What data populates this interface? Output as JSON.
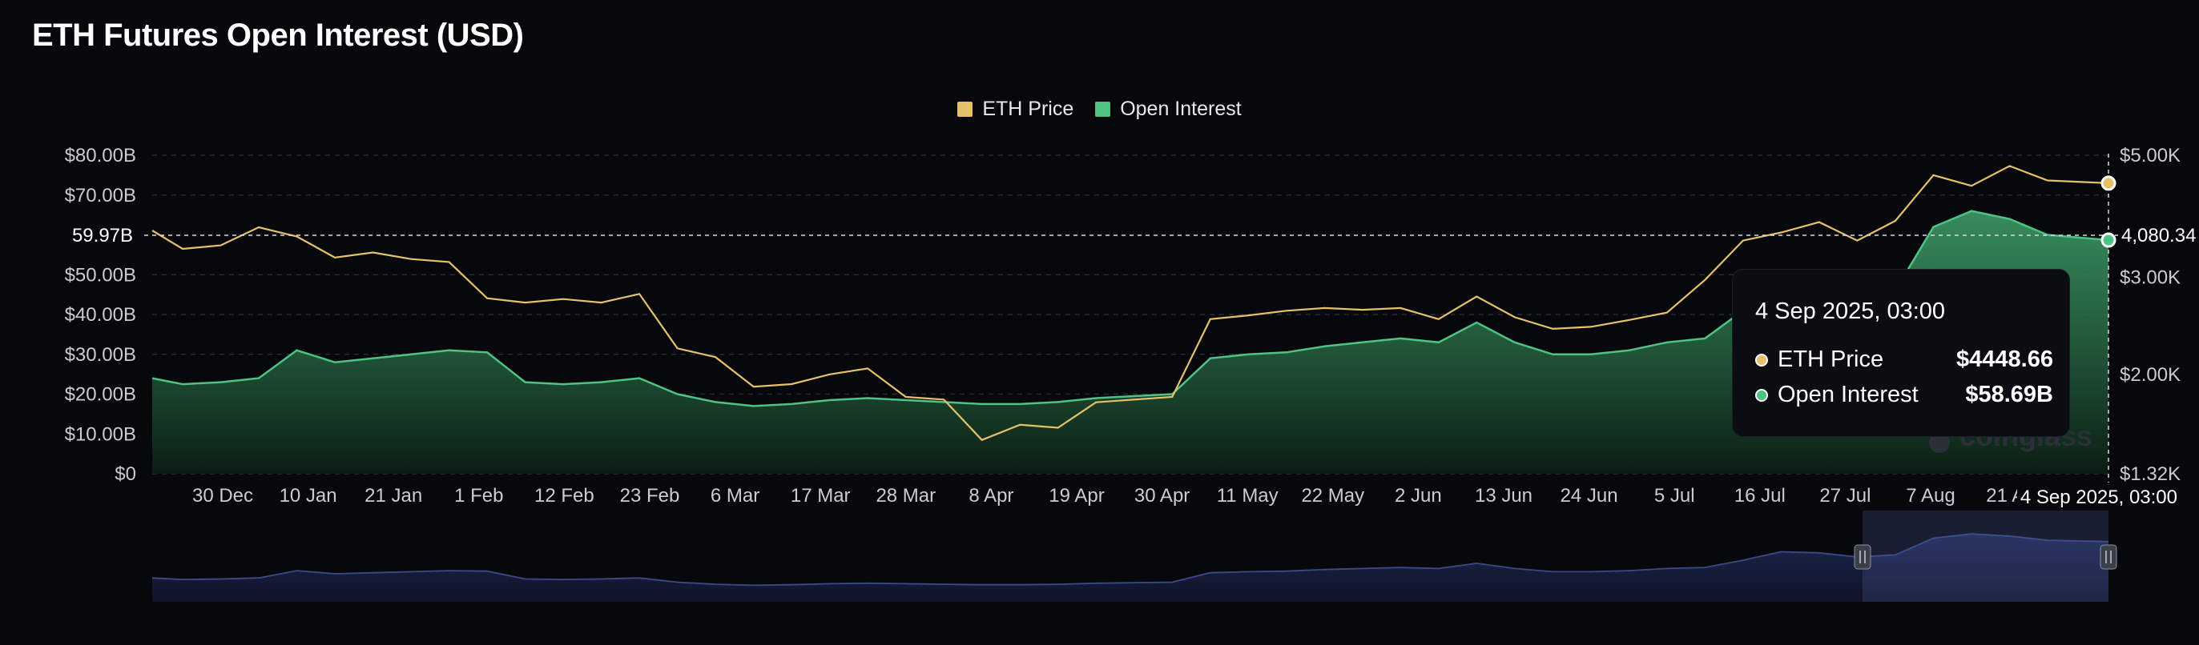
{
  "title": "ETH Futures Open Interest (USD)",
  "legend": {
    "price_label": "ETH Price",
    "oi_label": "Open Interest"
  },
  "colors": {
    "price": "#e6c16a",
    "oi": "#4ec384",
    "background": "#07080c",
    "navigator": "#3a4a8a"
  },
  "crosshair": {
    "left_label": "59.97B",
    "right_label": "4,080.34",
    "x_label": "4 Sep 2025, 03:00"
  },
  "tooltip": {
    "date": "4 Sep 2025, 03:00",
    "rows": [
      {
        "name": "ETH Price",
        "value": "$4448.66"
      },
      {
        "name": "Open Interest",
        "value": "$58.69B"
      }
    ]
  },
  "watermark": "coinglass",
  "chart_data": {
    "type": "area",
    "title": "ETH Futures Open Interest (USD)",
    "x_ticks": [
      "30 Dec",
      "10 Jan",
      "21 Jan",
      "1 Feb",
      "12 Feb",
      "23 Feb",
      "6 Mar",
      "17 Mar",
      "28 Mar",
      "8 Apr",
      "19 Apr",
      "30 Apr",
      "11 May",
      "22 May",
      "2 Jun",
      "13 Jun",
      "24 Jun",
      "5 Jul",
      "16 Jul",
      "27 Jul",
      "7 Aug",
      "21 Aug"
    ],
    "y_left_ticks": [
      "$80.00B",
      "$70.00B",
      "$50.00B",
      "$40.00B",
      "$30.00B",
      "$20.00B",
      "$10.00B",
      "$0"
    ],
    "y_right_ticks": [
      "$5.00K",
      "$3.00K",
      "$2.00K",
      "$1.32K"
    ],
    "y_left_range": [
      0,
      80
    ],
    "y_right_range_log": [
      1320,
      5000
    ],
    "x": [
      "2024-12-21",
      "2024-12-25",
      "2024-12-30",
      "2025-01-04",
      "2025-01-09",
      "2025-01-14",
      "2025-01-19",
      "2025-01-24",
      "2025-01-29",
      "2025-02-03",
      "2025-02-08",
      "2025-02-13",
      "2025-02-18",
      "2025-02-23",
      "2025-02-28",
      "2025-03-05",
      "2025-03-10",
      "2025-03-15",
      "2025-03-20",
      "2025-03-25",
      "2025-03-30",
      "2025-04-04",
      "2025-04-09",
      "2025-04-14",
      "2025-04-19",
      "2025-04-24",
      "2025-04-29",
      "2025-05-04",
      "2025-05-09",
      "2025-05-14",
      "2025-05-19",
      "2025-05-24",
      "2025-05-29",
      "2025-06-03",
      "2025-06-08",
      "2025-06-13",
      "2025-06-18",
      "2025-06-23",
      "2025-06-28",
      "2025-07-03",
      "2025-07-08",
      "2025-07-13",
      "2025-07-18",
      "2025-07-23",
      "2025-07-28",
      "2025-08-02",
      "2025-08-07",
      "2025-08-12",
      "2025-08-17",
      "2025-08-22",
      "2025-08-27",
      "2025-09-04"
    ],
    "series": [
      {
        "name": "ETH Price",
        "axis": "right",
        "unit": "USD",
        "values": [
          3650,
          3380,
          3430,
          3700,
          3560,
          3260,
          3330,
          3240,
          3200,
          2750,
          2700,
          2740,
          2700,
          2800,
          2230,
          2150,
          1900,
          1920,
          2000,
          2050,
          1820,
          1800,
          1520,
          1620,
          1600,
          1780,
          1800,
          1820,
          2520,
          2560,
          2610,
          2640,
          2620,
          2640,
          2520,
          2770,
          2540,
          2420,
          2440,
          2510,
          2590,
          2970,
          3500,
          3620,
          3780,
          3500,
          3800,
          4600,
          4400,
          4780,
          4500,
          4448.66
        ]
      },
      {
        "name": "Open Interest",
        "axis": "left",
        "unit": "USD billions",
        "values": [
          24,
          22.5,
          23,
          24,
          31,
          28,
          29,
          30,
          31,
          30.5,
          23,
          22.5,
          23,
          24,
          20,
          18,
          17,
          17.5,
          18.5,
          19,
          18.5,
          18,
          17.5,
          17.5,
          18,
          19,
          19.5,
          20,
          29,
          30,
          30.5,
          32,
          33,
          34,
          33,
          38,
          33,
          30,
          30,
          31,
          33,
          34,
          41,
          49,
          48,
          44,
          46,
          62,
          66,
          64,
          60,
          58.69
        ]
      }
    ]
  }
}
